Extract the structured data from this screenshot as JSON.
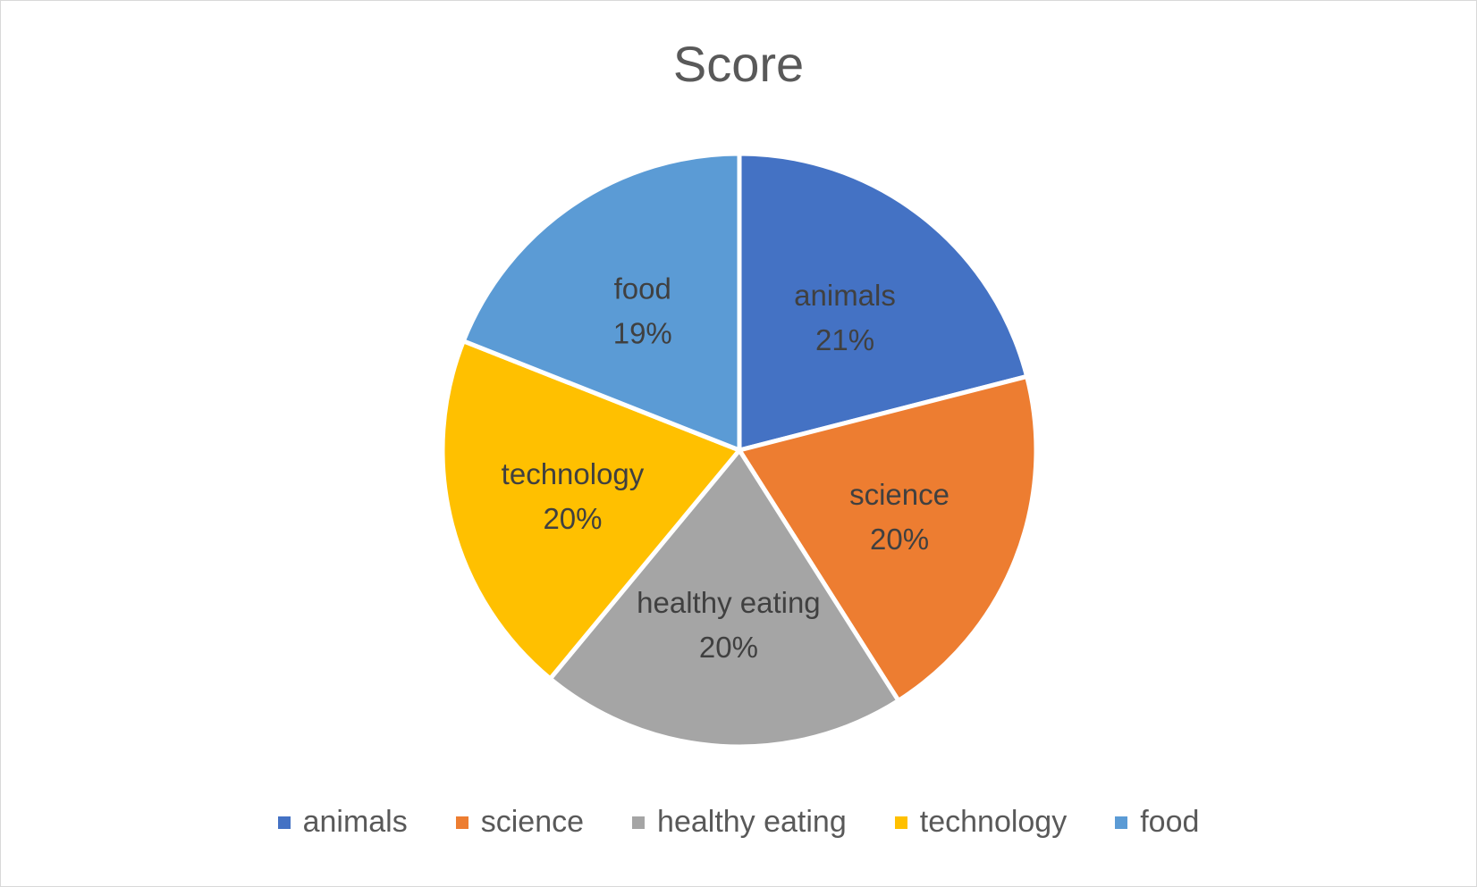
{
  "chart_data": {
    "type": "pie",
    "title": "Score",
    "categories": [
      "animals",
      "science",
      "healthy eating",
      "technology",
      "food"
    ],
    "values": [
      21,
      20,
      20,
      20,
      19
    ],
    "percent_labels": [
      "21%",
      "20%",
      "20%",
      "20%",
      "19%"
    ],
    "colors": [
      "#4472c4",
      "#ed7d31",
      "#a5a5a5",
      "#ffc000",
      "#5b9bd5"
    ],
    "legend": {
      "position": "bottom",
      "entries": [
        "animals",
        "science",
        "healthy eating",
        "technology",
        "food"
      ]
    }
  }
}
